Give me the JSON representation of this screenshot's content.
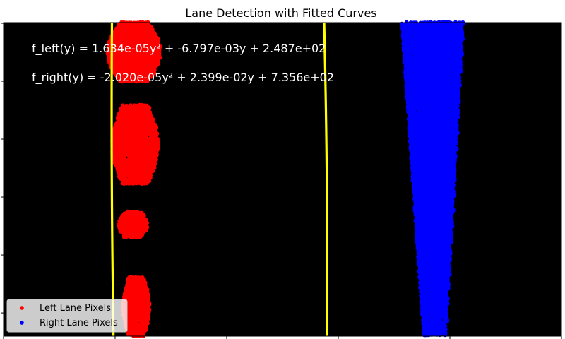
{
  "chart_data": {
    "type": "scatter",
    "title": "Lane Detection with Fitted Curves",
    "xlabel": "",
    "ylabel": "",
    "xlim": [
      0,
      1280
    ],
    "ylim": [
      720,
      0
    ],
    "background": "#000000",
    "grid": false,
    "legend_position": "lower-left",
    "annotations": [
      "f_left(y) = 1.634e-05y² + -6.797e-03y + 2.487e+02",
      "f_right(y) = -2.020e-05y² + 2.399e-02y + 7.356e+02"
    ],
    "series": [
      {
        "name": "Left Lane Pixels",
        "color": "#ff0000",
        "marker": "circle",
        "segments": [
          {
            "y_range": [
              0,
              135
            ],
            "x_range": [
              240,
              360
            ]
          },
          {
            "y_range": [
              190,
              370
            ],
            "x_range": [
              250,
              355
            ]
          },
          {
            "y_range": [
              435,
              495
            ],
            "x_range": [
              265,
              330
            ]
          },
          {
            "y_range": [
              585,
              720
            ],
            "x_range": [
              275,
              335
            ]
          }
        ]
      },
      {
        "name": "Right Lane Pixels",
        "color": "#0000ff",
        "marker": "circle",
        "segments": [
          {
            "y_range": [
              0,
              720
            ],
            "x_range_top": [
              915,
              1055
            ],
            "x_range_bottom": [
              965,
              1015
            ]
          }
        ]
      }
    ],
    "fits": [
      {
        "name": "left-fit",
        "color": "#ffff00",
        "coefficients": [
          1.634e-05,
          -0.006797,
          248.7
        ]
      },
      {
        "name": "right-fit",
        "color": "#ffff00",
        "coefficients": [
          -2.02e-05,
          0.02399,
          735.6
        ]
      }
    ]
  }
}
